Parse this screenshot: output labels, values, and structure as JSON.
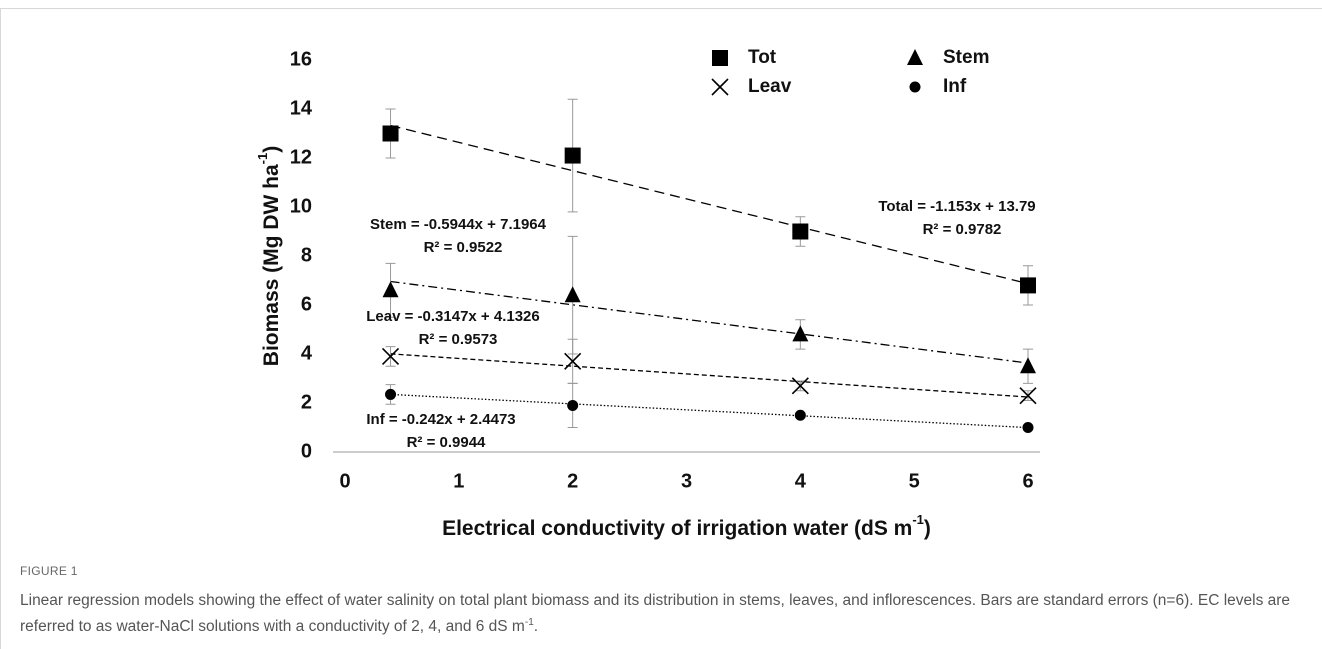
{
  "chart_data": {
    "type": "scatter",
    "x_label": [
      "Electrical conductivity of irrigation water (dS m",
      "-1",
      ")"
    ],
    "y_label": [
      "Biomass (Mg DW ha",
      "-1",
      ")"
    ],
    "x": [
      0.4,
      2,
      4,
      6
    ],
    "xlim": [
      0,
      6
    ],
    "xticks": [
      0,
      1,
      2,
      3,
      4,
      5,
      6
    ],
    "ylim": [
      0,
      16
    ],
    "yticks": [
      0,
      2,
      4,
      6,
      8,
      10,
      12,
      14,
      16
    ],
    "grid": false,
    "series": [
      {
        "name": "Tot",
        "marker": "square",
        "color": "#000000",
        "dash": "10 6",
        "values": [
          13,
          12.1,
          9,
          6.8
        ],
        "errors": [
          1.0,
          2.3,
          0.6,
          0.8
        ],
        "trend": {
          "slope": -1.153,
          "intercept": 13.79
        }
      },
      {
        "name": "Stem",
        "marker": "triangle",
        "color": "#000000",
        "dash": "9 4 2 4",
        "values": [
          6.6,
          6.4,
          4.8,
          3.5
        ],
        "errors": [
          1.1,
          2.4,
          0.6,
          0.7
        ],
        "trend": {
          "slope": -0.5944,
          "intercept": 7.1964
        }
      },
      {
        "name": "Leav",
        "marker": "cross",
        "color": "#000000",
        "dash": "5 3",
        "values": [
          3.9,
          3.7,
          2.7,
          2.3
        ],
        "errors": [
          0.4,
          0.9,
          0.2,
          0.2
        ],
        "trend": {
          "slope": -0.3147,
          "intercept": 4.1326
        }
      },
      {
        "name": "Inf",
        "marker": "circle",
        "color": "#000000",
        "dash": "1.5 2",
        "values": [
          2.35,
          1.9,
          1.5,
          1.0
        ],
        "errors": [
          0.4,
          0.9,
          0.1,
          0.1
        ],
        "trend": {
          "slope": -0.242,
          "intercept": 2.4473
        }
      }
    ],
    "annotations": [
      [
        "Total = -1.153x + 13.79",
        "R² = 0.9782"
      ],
      [
        "Stem = -0.5944x + 7.1964",
        "R² = 0.9522"
      ],
      [
        "Leav = -0.3147x + 4.1326",
        "R² = 0.9573"
      ],
      [
        "Inf = -0.242x + 2.4473",
        "R² = 0.9944"
      ]
    ],
    "figure_label": "FIGURE 1",
    "caption": [
      "Linear regression models showing the effect of water salinity on total plant biomass and its distribution in stems, leaves, and inflorescences. Bars are standard errors (n=6). EC levels are referred to as water-NaCl solutions with a conductivity of 2, 4, and 6 dS m",
      "-1",
      "."
    ]
  }
}
